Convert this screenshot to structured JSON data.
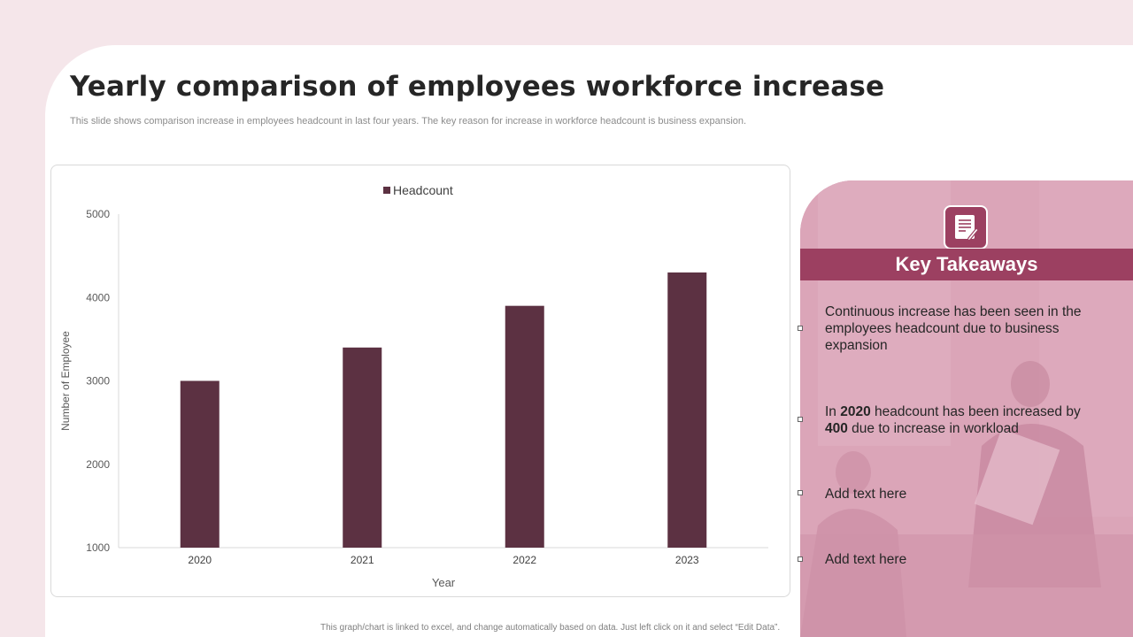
{
  "slide": {
    "title": "Yearly comparison of employees workforce increase",
    "subtitle": "This slide shows comparison increase in employees headcount in last four years. The key reason for increase in workforce headcount is business expansion.",
    "footer_note": "This graph/chart is linked to excel, and change automatically based on data. Just left click on it and select “Edit Data”."
  },
  "chart_data": {
    "type": "bar",
    "categories": [
      "2020",
      "2021",
      "2022",
      "2023"
    ],
    "series": [
      {
        "name": "Headcount",
        "values": [
          3000,
          3400,
          3900,
          4300
        ]
      }
    ],
    "xlabel": "Year",
    "ylabel": "Number of Employee",
    "ylim": [
      1000,
      5000
    ],
    "yticks": [
      1000,
      2000,
      3000,
      4000,
      5000
    ],
    "legend": "top",
    "grid": false,
    "bar_color": "#5c3142"
  },
  "panel": {
    "header": "Key Takeaways",
    "icon": "notepad-pencil-icon",
    "items": [
      {
        "text": "Continuous increase has been seen in the employees headcount due to business expansion"
      },
      {
        "pre": "In ",
        "b1": "2020",
        "mid": " headcount has been increased by ",
        "b2": "400",
        "post": " due to increase in workload"
      },
      {
        "text": "Add text here"
      },
      {
        "text": "Add text here"
      }
    ]
  },
  "colors": {
    "background": "#f5e6ea",
    "accent": "#9c4061",
    "panel": "#d89cb1",
    "bar": "#5c3142"
  }
}
